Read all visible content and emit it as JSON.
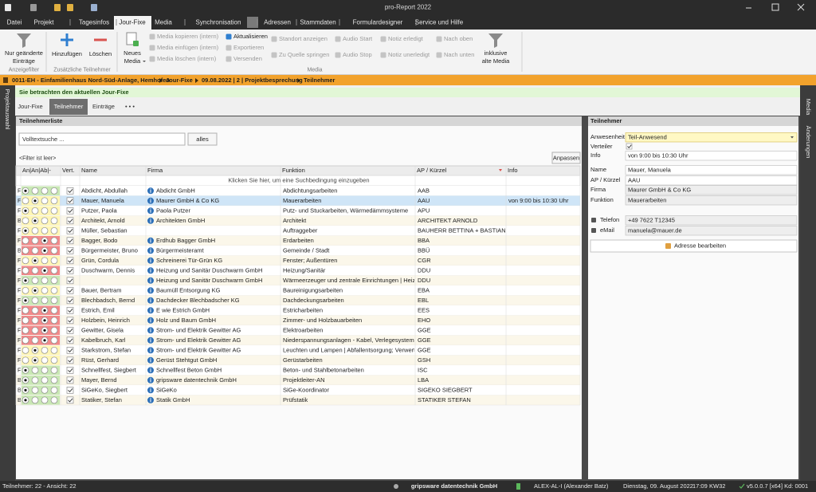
{
  "window": {
    "title": "pro-Report 2022"
  },
  "menu": [
    "Datei",
    "Projekt",
    "Tagesinfos",
    "Jour-Fixe",
    "Media",
    "Synchronisation",
    "Adressen",
    "Stammdaten",
    "Formulardesigner",
    "Service und Hilfe"
  ],
  "ribbon": {
    "items": [
      {
        "lines": [
          "Nur geänderte",
          "Einträge"
        ],
        "enabled": true
      },
      {
        "lines": [
          "Hinzufügen"
        ],
        "enabled": true
      },
      {
        "lines": [
          "Löschen"
        ],
        "enabled": true
      },
      {
        "lines": [
          "Neues",
          "Media"
        ],
        "enabled": true
      },
      {
        "lines": [
          "Media kopieren (intern)"
        ],
        "enabled": false
      },
      {
        "lines": [
          "Media einfügen (intern)"
        ],
        "enabled": false
      },
      {
        "lines": [
          "Media löschen (intern)"
        ],
        "enabled": false
      },
      {
        "lines": [
          "Aktualisieren"
        ],
        "enabled": true
      },
      {
        "lines": [
          "Exportieren"
        ],
        "enabled": false
      },
      {
        "lines": [
          "Versenden"
        ],
        "enabled": false
      },
      {
        "lines": [
          "Standort anzeigen"
        ],
        "enabled": false
      },
      {
        "lines": [
          "Zu Quelle springen"
        ],
        "enabled": false
      },
      {
        "lines": [
          "Audio Start"
        ],
        "enabled": false
      },
      {
        "lines": [
          "Audio Stop"
        ],
        "enabled": false
      },
      {
        "lines": [
          "Notiz erledigt"
        ],
        "enabled": false
      },
      {
        "lines": [
          "Notiz unerledigt"
        ],
        "enabled": false
      },
      {
        "lines": [
          "Nach oben"
        ],
        "enabled": false
      },
      {
        "lines": [
          "Nach unten"
        ],
        "enabled": false
      },
      {
        "lines": [
          "inklusive",
          "alte Media"
        ],
        "enabled": true
      }
    ],
    "groups": [
      "Anzeigefilter",
      "Zusätzliche Teilnehmer",
      "Media"
    ]
  },
  "breadcrumb": [
    "0011-EH - Einfamilienhaus Nord-Süd-Anlage, Hemhofen",
    "Jour-Fixe",
    "09.08.2022 | 2 | Projektbesprechung",
    "Teilnehmer"
  ],
  "side_left": "Projektauswahl",
  "notice": "Sie betrachten den aktuellen Jour-Fixe",
  "tabs": [
    "Jour-Fixe",
    "Teilnehmer",
    "Einträge",
    "• • •"
  ],
  "list": {
    "title": "Teilnehmerliste",
    "search_placeholder": "Volltextsuche ...",
    "search_button": "alles",
    "filter": "<Filter ist leer>",
    "adjust_button": "Anpassen",
    "columns": [
      "An|An|Ab|-",
      "Vert.",
      "Name",
      "Firma",
      "Funktion",
      "AP / Kürzel",
      "Info"
    ],
    "hint": "Klicken Sie hier, um eine Suchbedingung einzugeben",
    "rows": [
      {
        "type": "F",
        "status": 0,
        "tone": "green",
        "distribute": true,
        "name": "Abdicht, Abdullah",
        "company": "Abdicht GmbH",
        "function": "Abdichtungsarbeiten",
        "short": "AAB",
        "info": null
      },
      {
        "type": "F",
        "status": 1,
        "tone": "yellow",
        "distribute": true,
        "name": "Mauer, Manuela",
        "company": "Maurer GmbH & Co KG",
        "function": "Mauerarbeiten",
        "short": "AAU",
        "info": "von 9:00 bis 10:30 Uhr"
      },
      {
        "type": "F",
        "status": 0,
        "tone": "yellow",
        "distribute": true,
        "name": "Putzer, Paola",
        "company": "Paola Putzer",
        "function": "Putz- und Stuckarbeiten, Wärmedämmsysteme",
        "short": "APU",
        "info": null
      },
      {
        "type": "B",
        "status": 1,
        "tone": "yellow",
        "distribute": true,
        "name": "Architekt, Arnold",
        "company": "Architekten GmbH",
        "function": "Architekt",
        "short": "ARCHITEKT ARNOLD",
        "info": null
      },
      {
        "type": "F",
        "status": 0,
        "tone": "yellow",
        "distribute": true,
        "name": "Müller, Sebastian",
        "company": null,
        "function": "Auftraggeber",
        "short": "BAUHERR BETTINA + BASTIAN",
        "info": null
      },
      {
        "type": "F",
        "status": 2,
        "tone": "red",
        "distribute": true,
        "name": "Bagger, Bodo",
        "company": "Erdhub Bagger GmbH",
        "function": "Erdarbeiten",
        "short": "BBA",
        "info": null
      },
      {
        "type": "B",
        "status": 2,
        "tone": "red",
        "distribute": true,
        "name": "Bürgermeister, Bruno",
        "company": "Bürgermeisteramt",
        "function": "Gemeinde / Stadt",
        "short": "BBÜ",
        "info": null
      },
      {
        "type": "F",
        "status": 1,
        "tone": "yellow",
        "distribute": true,
        "name": "Grün, Cordula",
        "company": "Schreinerei Tür-Grün KG",
        "function": "Fenster; Außentüren",
        "short": "CGR",
        "info": null
      },
      {
        "type": "F",
        "status": 2,
        "tone": "red",
        "distribute": true,
        "name": "Duschwarm, Dennis",
        "company": "Heizung und Sanitär Duschwarm GmbH",
        "function": "Heizung/Sanitär",
        "short": "DDU",
        "info": null
      },
      {
        "type": "F",
        "status": 0,
        "tone": "green",
        "distribute": true,
        "name": null,
        "company": "Heizung und Sanitär Duschwarm GmbH",
        "function": "Wärmeerzeuger und zentrale Einrichtungen | Heizfläc",
        "short": "DDU",
        "info": null
      },
      {
        "type": "F",
        "status": 1,
        "tone": "yellow",
        "distribute": true,
        "name": "Bauer, Bertram",
        "company": "Baumüll Entsorgung KG",
        "function": "Baureinigungsarbeiten",
        "short": "EBA",
        "info": null
      },
      {
        "type": "F",
        "status": 0,
        "tone": "green",
        "distribute": true,
        "name": "Blechbadsch, Bernd",
        "company": "Dachdecker Blechbadscher KG",
        "function": "Dachdeckungsarbeiten",
        "short": "EBL",
        "info": null
      },
      {
        "type": "F",
        "status": 2,
        "tone": "red",
        "distribute": true,
        "name": "Estrich, Emil",
        "company": "E wie Estrich GmbH",
        "function": "Estricharbeiten",
        "short": "EES",
        "info": null
      },
      {
        "type": "F",
        "status": 2,
        "tone": "red",
        "distribute": true,
        "name": "Holzbein, Heinrich",
        "company": "Holz und Baum GmbH",
        "function": "Zimmer- und Holzbauarbeiten",
        "short": "EHO",
        "info": null
      },
      {
        "type": "F",
        "status": 2,
        "tone": "red",
        "distribute": true,
        "name": "Gewitter, Gisela",
        "company": "Strom- und Elektrik Gewitter AG",
        "function": "Elektroarbeiten",
        "short": "GGE",
        "info": null
      },
      {
        "type": "F",
        "status": 2,
        "tone": "red",
        "distribute": true,
        "name": "Kabelbruch, Karl",
        "company": "Strom- und Elektrik Gewitter AG",
        "function": "Niederspannungsanlagen - Kabel, Verlegesysteme | N",
        "short": "GGE",
        "info": null
      },
      {
        "type": "F",
        "status": 1,
        "tone": "yellow",
        "distribute": true,
        "name": "Starkstrom, Stefan",
        "company": "Strom- und Elektrik Gewitter AG",
        "function": "Leuchten und Lampen | Abfallentsorgung; Verwertur",
        "short": "GGE",
        "info": null
      },
      {
        "type": "F",
        "status": 1,
        "tone": "yellow",
        "distribute": true,
        "name": "Rüst, Gerhard",
        "company": "Gerüst Stehtgut GmbH",
        "function": "Gerüstarbeiten",
        "short": "GSH",
        "info": null
      },
      {
        "type": "F",
        "status": 0,
        "tone": "green",
        "distribute": true,
        "name": "Schnellfest, Siegbert",
        "company": "Schnellfest Beton GmbH",
        "function": "Beton- und Stahlbetonarbeiten",
        "short": "ISC",
        "info": null
      },
      {
        "type": "B",
        "status": 0,
        "tone": "green",
        "distribute": true,
        "name": "Mayer, Bernd",
        "company": "gripsware datentechnik GmbH",
        "function": "Projektleiter-AN",
        "short": "LBA",
        "info": null
      },
      {
        "type": "B",
        "status": 0,
        "tone": "green",
        "distribute": true,
        "name": "SiGeKo, Siegbert",
        "company": "SiGeKo",
        "function": "SiGe-Koordinator",
        "short": "SIGEKO SIEGBERT",
        "info": null
      },
      {
        "type": "B",
        "status": 0,
        "tone": "green",
        "distribute": true,
        "name": "Statiker, Stefan",
        "company": "Statik GmbH",
        "function": "Prüfstatik",
        "short": "STATIKER STEFAN",
        "info": null
      }
    ]
  },
  "detail": {
    "title": "Teilnehmer",
    "fields": [
      {
        "label": "Anwesenheit",
        "value": "Teil-Anwesend"
      },
      {
        "label": "Verteiler",
        "checked": true
      },
      {
        "label": "Info",
        "value": "von 9:00 bis 10:30 Uhr"
      },
      {
        "label": "Name",
        "value": "Mauer, Manuela"
      },
      {
        "label": "AP / Kürzel",
        "value": "AAU"
      },
      {
        "label": "Firma",
        "value": "Maurer GmbH & Co KG"
      },
      {
        "label": "Funktion",
        "value": "Mauerarbeiten"
      },
      {
        "label": "Telefon",
        "value": "+49 7622 T12345"
      },
      {
        "label": "eMail",
        "value": "manuela@mauer.de"
      }
    ],
    "button": "Adresse bearbeiten"
  },
  "side_right": [
    "Media",
    "Änderungen"
  ],
  "status": {
    "left": "Teilnehmer: 22 - Ansicht: 22",
    "company": "gripsware datentechnik GmbH",
    "user": "ALEX-AL-I (Alexander Batz)",
    "date": "Dienstag, 09. August 2022",
    "time": "17:09",
    "week": "KW32",
    "version": "v5.0.0.7 [x64] Kd: 0001"
  }
}
